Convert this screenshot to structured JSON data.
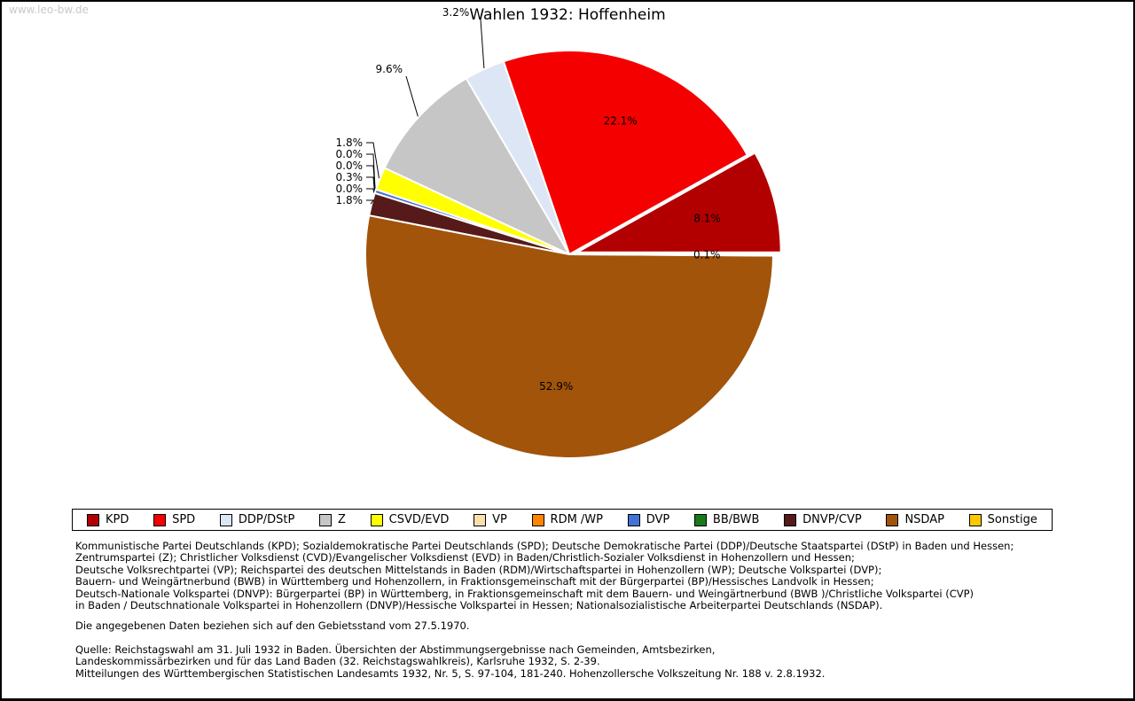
{
  "page": {
    "watermark": "www.leo-bw.de",
    "title": "Wahlen 1932: Hoffenheim"
  },
  "chart_data": {
    "type": "pie",
    "title": "Wahlen 1932: Hoffenheim",
    "unit": "%",
    "start_angle_deg": 0,
    "direction": "counterclockwise",
    "legend_position": "bottom",
    "slices": [
      {
        "label": "KPD",
        "value": 8.1,
        "display": "8.1%",
        "color": "#b20000",
        "exploded": true
      },
      {
        "label": "SPD",
        "value": 22.1,
        "display": "22.1%",
        "color": "#f40000"
      },
      {
        "label": "DDP/DStP",
        "value": 3.2,
        "display": "3.2%",
        "color": "#dce6f5"
      },
      {
        "label": "Z",
        "value": 9.6,
        "display": "9.6%",
        "color": "#c6c6c6"
      },
      {
        "label": "CSVD/EVD",
        "value": 1.8,
        "display": "1.8%",
        "color": "#ffff00"
      },
      {
        "label": "VP",
        "value": 0.0,
        "display": "0.0%",
        "color": "#f9e0ae"
      },
      {
        "label": "RDM /WP",
        "value": 0.0,
        "display": "0.0%",
        "color": "#ff8400"
      },
      {
        "label": "DVP",
        "value": 0.3,
        "display": "0.3%",
        "color": "#4472d4"
      },
      {
        "label": "BB/BWB",
        "value": 0.0,
        "display": "0.0%",
        "color": "#1a7a1a"
      },
      {
        "label": "DNVP/CVP",
        "value": 1.8,
        "display": "1.8%",
        "color": "#571a1a"
      },
      {
        "label": "NSDAP",
        "value": 52.9,
        "display": "52.9%",
        "color": "#a1540a"
      },
      {
        "label": "Sonstige",
        "value": 0.1,
        "display": "0.1%",
        "color": "#ffc800"
      }
    ]
  },
  "footnotes": {
    "definitions": [
      "Kommunistische Partei Deutschlands (KPD); Sozialdemokratische Partei Deutschlands (SPD); Deutsche Demokratische Partei (DDP)/Deutsche Staatspartei (DStP) in Baden und Hessen;",
      "Zentrumspartei (Z); Christlicher Volksdienst (CVD)/Evangelischer Volksdienst (EVD) in Baden/Christlich-Sozialer Volksdienst in Hohenzollern und Hessen;",
      "Deutsche Volksrechtpartei (VP); Reichspartei des deutschen Mittelstands in Baden (RDM)/Wirtschaftspartei in Hohenzollern (WP); Deutsche Volkspartei (DVP);",
      "Bauern- und Weingärtnerbund (BWB) in Württemberg und Hohenzollern, in Fraktionsgemeinschaft mit der Bürgerpartei (BP)/Hessisches Landvolk in Hessen;",
      "Deutsch-Nationale Volkspartei (DNVP): Bürgerpartei (BP) in Württemberg, in Fraktionsgemeinschaft mit dem Bauern- und Weingärtnerbund (BWB )/Christliche Volkspartei (CVP)",
      "in Baden / Deutschnationale Volkspartei in Hohenzollern (DNVP)/Hessische Volkspartei in Hessen; Nationalsozialistische Arbeiterpartei Deutschlands (NSDAP)."
    ],
    "note": "Die angegebenen Daten beziehen sich auf den Gebietsstand vom 27.5.1970.",
    "source": [
      "Quelle: Reichstagswahl am 31. Juli 1932 in Baden. Übersichten der Abstimmungsergebnisse nach Gemeinden, Amtsbezirken,",
      "Landeskommissärbezirken und für das Land Baden (32. Reichstagswahlkreis), Karlsruhe 1932, S. 2-39.",
      "Mitteilungen des Württembergischen Statistischen Landesamts 1932, Nr. 5, S. 97-104, 181-240. Hohenzollersche Volkszeitung Nr. 188 v. 2.8.1932."
    ]
  }
}
